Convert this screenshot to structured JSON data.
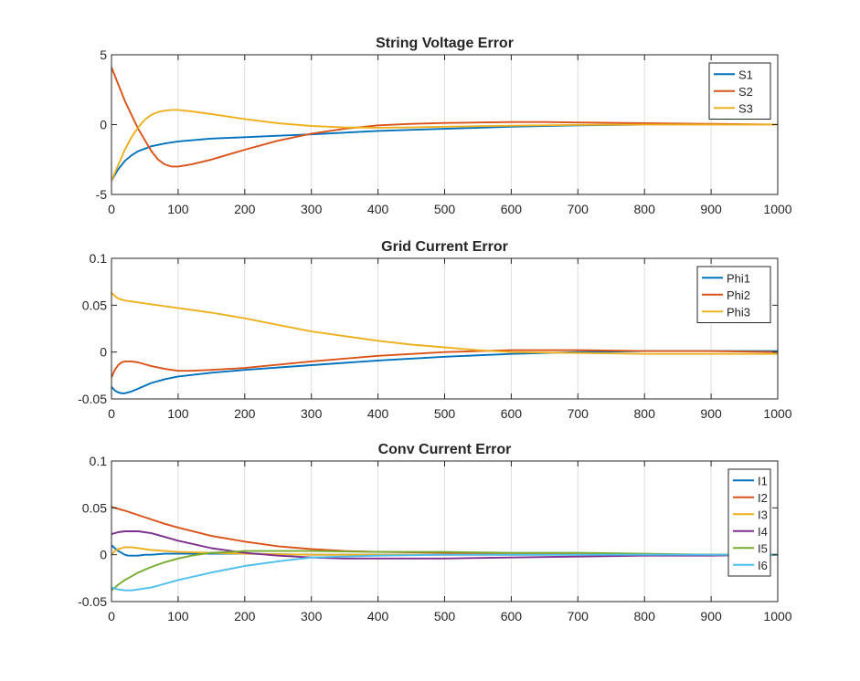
{
  "chart_data": [
    {
      "type": "line",
      "title": "String Voltage Error",
      "xlabel": "",
      "ylabel": "",
      "xlim": [
        0,
        1000
      ],
      "ylim": [
        -5,
        5
      ],
      "xticks": [
        0,
        100,
        200,
        300,
        400,
        500,
        600,
        700,
        800,
        900,
        1000
      ],
      "yticks": [
        -5,
        0,
        5
      ],
      "grid": "x",
      "legend": "top-right",
      "series": [
        {
          "name": "S1",
          "color": "#0072BD",
          "x": [
            0,
            10,
            20,
            30,
            40,
            60,
            80,
            100,
            150,
            200,
            250,
            300,
            400,
            500,
            600,
            700,
            800,
            900,
            1000
          ],
          "y": [
            -4.0,
            -3.2,
            -2.6,
            -2.2,
            -1.9,
            -1.55,
            -1.35,
            -1.2,
            -1.0,
            -0.9,
            -0.8,
            -0.7,
            -0.45,
            -0.3,
            -0.15,
            -0.05,
            0.0,
            0.0,
            0.0
          ]
        },
        {
          "name": "S2",
          "color": "#D95319",
          "x": [
            0,
            10,
            20,
            30,
            40,
            50,
            60,
            70,
            80,
            90,
            100,
            120,
            150,
            200,
            250,
            300,
            350,
            400,
            450,
            500,
            550,
            600,
            650,
            700,
            800,
            900,
            1000
          ],
          "y": [
            4.1,
            2.9,
            1.7,
            0.7,
            -0.3,
            -1.1,
            -1.9,
            -2.5,
            -2.85,
            -3.0,
            -3.0,
            -2.85,
            -2.5,
            -1.8,
            -1.15,
            -0.65,
            -0.3,
            -0.05,
            0.05,
            0.12,
            0.15,
            0.18,
            0.18,
            0.15,
            0.1,
            0.05,
            0.0
          ]
        },
        {
          "name": "S3",
          "color": "#EDB120",
          "x": [
            0,
            10,
            20,
            30,
            40,
            50,
            60,
            70,
            80,
            90,
            100,
            120,
            150,
            200,
            250,
            300,
            350,
            400,
            450,
            500,
            600,
            700,
            800,
            900,
            1000
          ],
          "y": [
            -4.0,
            -2.9,
            -1.8,
            -0.9,
            -0.2,
            0.35,
            0.7,
            0.9,
            1.0,
            1.05,
            1.05,
            0.95,
            0.75,
            0.4,
            0.1,
            -0.1,
            -0.2,
            -0.22,
            -0.2,
            -0.15,
            -0.08,
            -0.02,
            0.0,
            0.0,
            0.0
          ]
        }
      ]
    },
    {
      "type": "line",
      "title": "Grid Current Error",
      "xlabel": "",
      "ylabel": "",
      "xlim": [
        0,
        1000
      ],
      "ylim": [
        -0.05,
        0.1
      ],
      "xticks": [
        0,
        100,
        200,
        300,
        400,
        500,
        600,
        700,
        800,
        900,
        1000
      ],
      "yticks": [
        -0.05,
        0,
        0.05,
        0.1
      ],
      "grid": "x",
      "legend": "top-right",
      "series": [
        {
          "name": "Phi1",
          "color": "#0072BD",
          "x": [
            0,
            5,
            10,
            15,
            20,
            30,
            40,
            50,
            60,
            80,
            100,
            150,
            200,
            300,
            400,
            500,
            600,
            700,
            800,
            900,
            1000
          ],
          "y": [
            -0.037,
            -0.041,
            -0.043,
            -0.044,
            -0.044,
            -0.042,
            -0.039,
            -0.036,
            -0.033,
            -0.029,
            -0.026,
            -0.022,
            -0.019,
            -0.014,
            -0.009,
            -0.005,
            -0.002,
            0.0,
            0.001,
            0.001,
            0.001
          ]
        },
        {
          "name": "Phi2",
          "color": "#D95319",
          "x": [
            0,
            5,
            10,
            15,
            20,
            30,
            40,
            50,
            60,
            80,
            100,
            120,
            150,
            200,
            300,
            400,
            500,
            600,
            700,
            800,
            900,
            1000
          ],
          "y": [
            -0.027,
            -0.019,
            -0.014,
            -0.011,
            -0.01,
            -0.01,
            -0.011,
            -0.013,
            -0.015,
            -0.018,
            -0.02,
            -0.02,
            -0.019,
            -0.017,
            -0.01,
            -0.004,
            0.0,
            0.002,
            0.002,
            0.001,
            0.001,
            0.0
          ]
        },
        {
          "name": "Phi3",
          "color": "#EDB120",
          "x": [
            0,
            5,
            10,
            20,
            30,
            50,
            80,
            100,
            150,
            200,
            250,
            300,
            350,
            400,
            450,
            500,
            550,
            600,
            700,
            800,
            900,
            1000
          ],
          "y": [
            0.063,
            0.06,
            0.057,
            0.055,
            0.054,
            0.052,
            0.049,
            0.047,
            0.042,
            0.036,
            0.029,
            0.022,
            0.017,
            0.012,
            0.008,
            0.005,
            0.002,
            0.0,
            -0.001,
            -0.002,
            -0.002,
            -0.002
          ]
        }
      ]
    },
    {
      "type": "line",
      "title": "Conv Current Error",
      "xlabel": "",
      "ylabel": "",
      "xlim": [
        0,
        1000
      ],
      "ylim": [
        -0.05,
        0.1
      ],
      "xticks": [
        0,
        100,
        200,
        300,
        400,
        500,
        600,
        700,
        800,
        900,
        1000
      ],
      "yticks": [
        -0.05,
        0,
        0.05,
        0.1
      ],
      "grid": "x",
      "legend": "top-right",
      "series": [
        {
          "name": "I1",
          "color": "#0072BD",
          "x": [
            0,
            5,
            10,
            15,
            20,
            25,
            30,
            40,
            50,
            60,
            80,
            100,
            150,
            200,
            300,
            400,
            500,
            600,
            700,
            800,
            900,
            1000
          ],
          "y": [
            0.01,
            0.007,
            0.004,
            0.002,
            0.0,
            -0.001,
            -0.001,
            -0.001,
            0.0,
            0.0,
            0.001,
            0.001,
            0.001,
            0.001,
            0.0,
            0.0,
            0.0,
            0.0,
            0.0,
            0.0,
            0.0,
            0.0
          ]
        },
        {
          "name": "I2",
          "color": "#D95319",
          "x": [
            0,
            20,
            50,
            80,
            100,
            150,
            200,
            250,
            300,
            350,
            400,
            500,
            600,
            700,
            800,
            900,
            1000
          ],
          "y": [
            0.051,
            0.047,
            0.04,
            0.033,
            0.029,
            0.02,
            0.014,
            0.009,
            0.006,
            0.004,
            0.003,
            0.002,
            0.001,
            0.001,
            0.0,
            0.0,
            0.0
          ]
        },
        {
          "name": "I3",
          "color": "#EDB120",
          "x": [
            0,
            5,
            10,
            15,
            20,
            25,
            30,
            40,
            50,
            60,
            80,
            100,
            150,
            200,
            300,
            400,
            500,
            600,
            700,
            800,
            900,
            1000
          ],
          "y": [
            0.0,
            0.004,
            0.006,
            0.007,
            0.008,
            0.008,
            0.008,
            0.007,
            0.006,
            0.005,
            0.004,
            0.003,
            0.002,
            0.001,
            0.0,
            0.0,
            0.0,
            0.0,
            0.0,
            0.0,
            0.0,
            0.0
          ]
        },
        {
          "name": "I4",
          "color": "#7E2F8E",
          "x": [
            0,
            10,
            20,
            30,
            40,
            50,
            60,
            80,
            100,
            150,
            200,
            250,
            300,
            350,
            400,
            500,
            600,
            700,
            800,
            900,
            1000
          ],
          "y": [
            0.022,
            0.024,
            0.025,
            0.025,
            0.025,
            0.024,
            0.023,
            0.019,
            0.015,
            0.007,
            0.002,
            -0.001,
            -0.003,
            -0.004,
            -0.004,
            -0.004,
            -0.003,
            -0.002,
            -0.001,
            -0.001,
            0.0
          ]
        },
        {
          "name": "I5",
          "color": "#77AC30",
          "x": [
            0,
            10,
            20,
            30,
            40,
            50,
            60,
            80,
            100,
            120,
            150,
            180,
            200,
            250,
            300,
            400,
            500,
            600,
            700,
            800,
            900,
            1000
          ],
          "y": [
            -0.038,
            -0.032,
            -0.027,
            -0.023,
            -0.019,
            -0.016,
            -0.013,
            -0.008,
            -0.004,
            -0.001,
            0.002,
            0.003,
            0.004,
            0.004,
            0.004,
            0.003,
            0.003,
            0.002,
            0.002,
            0.001,
            0.0,
            0.0
          ]
        },
        {
          "name": "I6",
          "color": "#4DBEEE",
          "x": [
            0,
            10,
            20,
            30,
            40,
            50,
            60,
            80,
            100,
            150,
            200,
            250,
            300,
            350,
            400,
            500,
            600,
            700,
            800,
            900,
            1000
          ],
          "y": [
            -0.035,
            -0.037,
            -0.038,
            -0.038,
            -0.037,
            -0.036,
            -0.035,
            -0.031,
            -0.027,
            -0.019,
            -0.012,
            -0.007,
            -0.003,
            -0.002,
            -0.001,
            0.0,
            0.0,
            0.0,
            0.0,
            0.0,
            0.0
          ]
        }
      ]
    }
  ]
}
